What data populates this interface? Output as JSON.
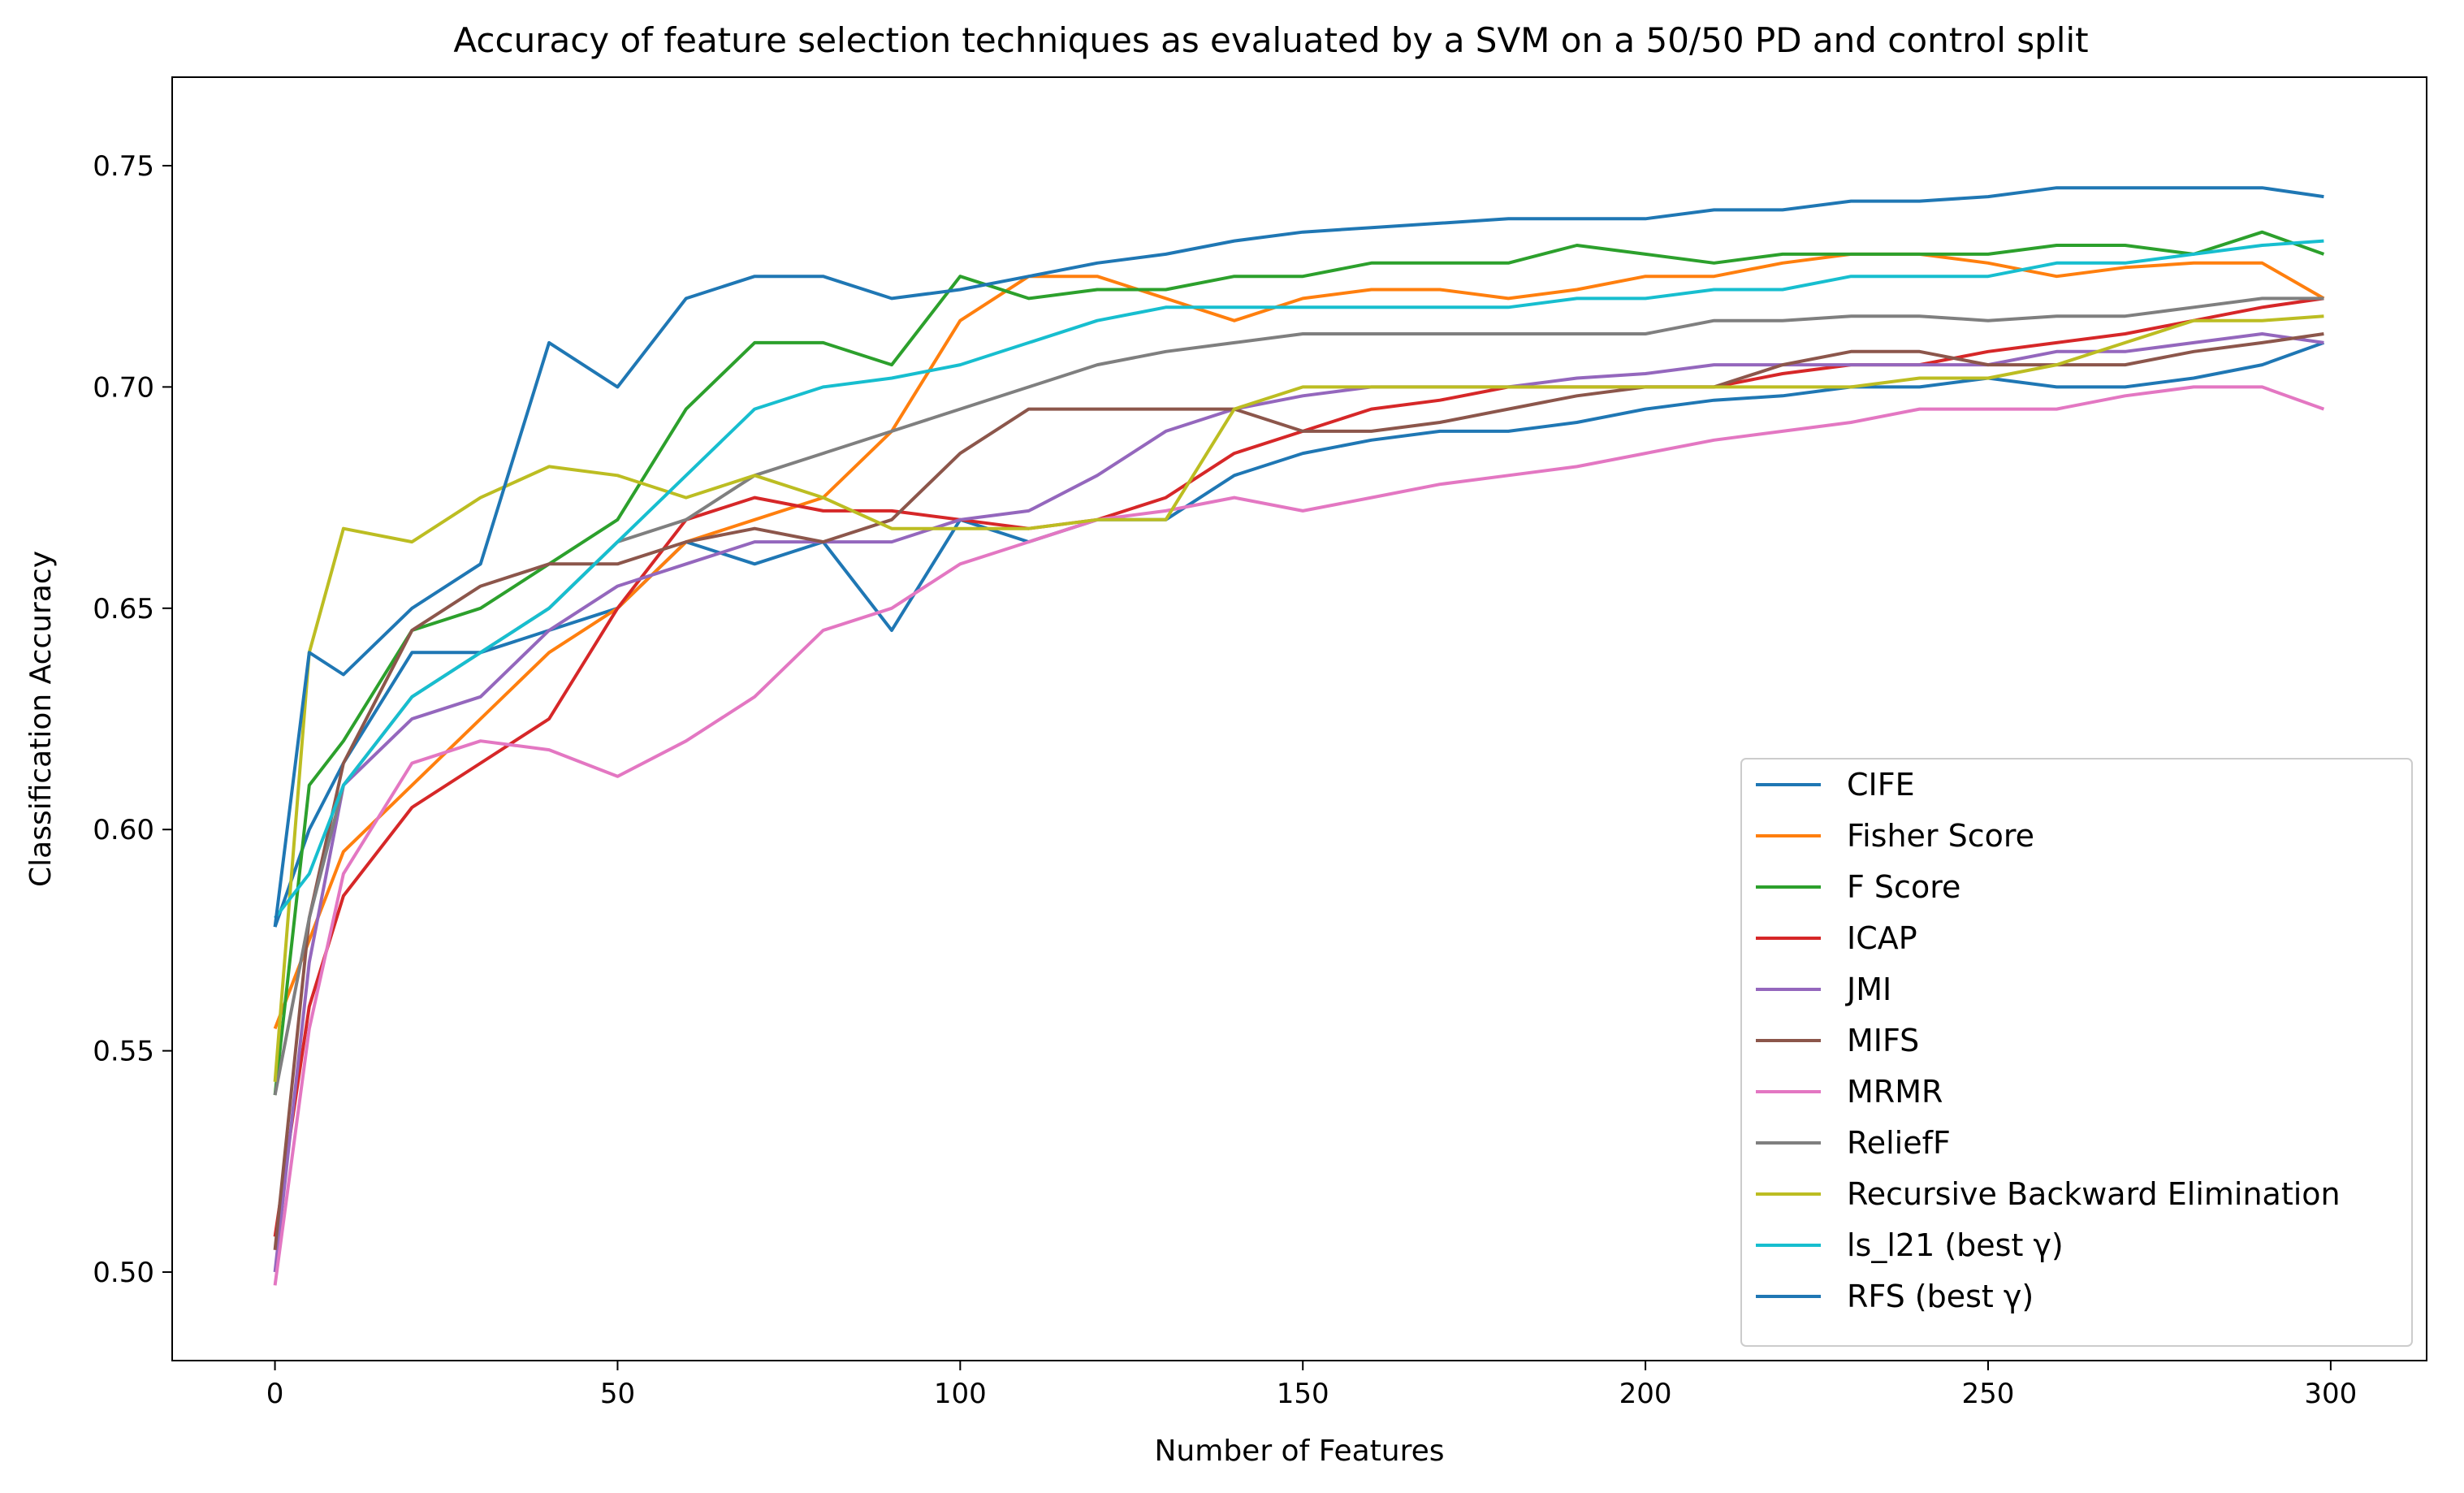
{
  "chart_data": {
    "type": "line",
    "title": "Accuracy of feature selection techniques as evaluated by a SVM on a 50/50 PD and control split",
    "xlabel": "Number of Features",
    "ylabel": "Classification Accuracy",
    "xlim": [
      -15,
      314
    ],
    "ylim": [
      0.48,
      0.77
    ],
    "xticks": [
      0,
      50,
      100,
      150,
      200,
      250,
      300
    ],
    "yticks": [
      0.5,
      0.55,
      0.6,
      0.65,
      0.7,
      0.75
    ],
    "xtick_labels": [
      "0",
      "50",
      "100",
      "150",
      "200",
      "250",
      "300"
    ],
    "ytick_labels": [
      "0.50",
      "0.55",
      "0.60",
      "0.65",
      "0.70",
      "0.75"
    ],
    "grid": false,
    "legend_position": "lower-right",
    "x": [
      0,
      5,
      10,
      20,
      30,
      40,
      50,
      60,
      70,
      80,
      90,
      100,
      110,
      120,
      130,
      140,
      150,
      160,
      170,
      180,
      190,
      200,
      210,
      220,
      230,
      240,
      250,
      260,
      270,
      280,
      290,
      299
    ],
    "series": [
      {
        "name": "CIFE",
        "color": "#1f77b4",
        "values": [
          0.578,
          0.6,
          0.615,
          0.64,
          0.64,
          0.645,
          0.65,
          0.665,
          0.66,
          0.665,
          0.645,
          0.67,
          0.665,
          0.67,
          0.67,
          0.68,
          0.685,
          0.688,
          0.69,
          0.69,
          0.692,
          0.695,
          0.697,
          0.698,
          0.7,
          0.7,
          0.702,
          0.7,
          0.7,
          0.702,
          0.705,
          0.71
        ]
      },
      {
        "name": "Fisher Score",
        "color": "#ff7f0e",
        "values": [
          0.555,
          0.575,
          0.595,
          0.61,
          0.625,
          0.64,
          0.65,
          0.665,
          0.67,
          0.675,
          0.69,
          0.715,
          0.725,
          0.725,
          0.72,
          0.715,
          0.72,
          0.722,
          0.722,
          0.72,
          0.722,
          0.725,
          0.725,
          0.728,
          0.73,
          0.73,
          0.728,
          0.725,
          0.727,
          0.728,
          0.728,
          0.72
        ]
      },
      {
        "name": "F Score",
        "color": "#2ca02c",
        "values": [
          0.54,
          0.61,
          0.62,
          0.645,
          0.65,
          0.66,
          0.67,
          0.695,
          0.71,
          0.71,
          0.705,
          0.725,
          0.72,
          0.722,
          0.722,
          0.725,
          0.725,
          0.728,
          0.728,
          0.728,
          0.732,
          0.73,
          0.728,
          0.73,
          0.73,
          0.73,
          0.73,
          0.732,
          0.732,
          0.73,
          0.735,
          0.73
        ]
      },
      {
        "name": "ICAP",
        "color": "#d62728",
        "values": [
          0.508,
          0.56,
          0.585,
          0.605,
          0.615,
          0.625,
          0.65,
          0.67,
          0.675,
          0.672,
          0.672,
          0.67,
          0.668,
          0.67,
          0.675,
          0.685,
          0.69,
          0.695,
          0.697,
          0.7,
          0.7,
          0.7,
          0.7,
          0.703,
          0.705,
          0.705,
          0.708,
          0.71,
          0.712,
          0.715,
          0.718,
          0.72
        ]
      },
      {
        "name": "JMI",
        "color": "#9467bd",
        "values": [
          0.5,
          0.57,
          0.61,
          0.625,
          0.63,
          0.645,
          0.655,
          0.66,
          0.665,
          0.665,
          0.665,
          0.67,
          0.672,
          0.68,
          0.69,
          0.695,
          0.698,
          0.7,
          0.7,
          0.7,
          0.702,
          0.703,
          0.705,
          0.705,
          0.705,
          0.705,
          0.705,
          0.708,
          0.708,
          0.71,
          0.712,
          0.71
        ]
      },
      {
        "name": "MIFS",
        "color": "#8c564b",
        "values": [
          0.505,
          0.58,
          0.615,
          0.645,
          0.655,
          0.66,
          0.66,
          0.665,
          0.668,
          0.665,
          0.67,
          0.685,
          0.695,
          0.695,
          0.695,
          0.695,
          0.69,
          0.69,
          0.692,
          0.695,
          0.698,
          0.7,
          0.7,
          0.705,
          0.708,
          0.708,
          0.705,
          0.705,
          0.705,
          0.708,
          0.71,
          0.712
        ]
      },
      {
        "name": "MRMR",
        "color": "#e377c2",
        "values": [
          0.497,
          0.555,
          0.59,
          0.615,
          0.62,
          0.618,
          0.612,
          0.62,
          0.63,
          0.645,
          0.65,
          0.66,
          0.665,
          0.67,
          0.672,
          0.675,
          0.672,
          0.675,
          0.678,
          0.68,
          0.682,
          0.685,
          0.688,
          0.69,
          0.692,
          0.695,
          0.695,
          0.695,
          0.698,
          0.7,
          0.7,
          0.695
        ]
      },
      {
        "name": "ReliefF",
        "color": "#7f7f7f",
        "values": [
          0.54,
          0.58,
          0.61,
          0.63,
          0.64,
          0.65,
          0.665,
          0.67,
          0.68,
          0.685,
          0.69,
          0.695,
          0.7,
          0.705,
          0.708,
          0.71,
          0.712,
          0.712,
          0.712,
          0.712,
          0.712,
          0.712,
          0.715,
          0.715,
          0.716,
          0.716,
          0.715,
          0.716,
          0.716,
          0.718,
          0.72,
          0.72
        ]
      },
      {
        "name": "Recursive Backward Elimination",
        "color": "#bcbd22",
        "values": [
          0.543,
          0.64,
          0.668,
          0.665,
          0.675,
          0.682,
          0.68,
          0.675,
          0.68,
          0.675,
          0.668,
          0.668,
          0.668,
          0.67,
          0.67,
          0.695,
          0.7,
          0.7,
          0.7,
          0.7,
          0.7,
          0.7,
          0.7,
          0.7,
          0.7,
          0.702,
          0.702,
          0.705,
          0.71,
          0.715,
          0.715,
          0.716
        ]
      },
      {
        "name": "ls_l21 (best γ)",
        "color": "#17becf",
        "values": [
          0.58,
          0.59,
          0.61,
          0.63,
          0.64,
          0.65,
          0.665,
          0.68,
          0.695,
          0.7,
          0.702,
          0.705,
          0.71,
          0.715,
          0.718,
          0.718,
          0.718,
          0.718,
          0.718,
          0.718,
          0.72,
          0.72,
          0.722,
          0.722,
          0.725,
          0.725,
          0.725,
          0.728,
          0.728,
          0.73,
          0.732,
          0.733
        ]
      },
      {
        "name": "RFS (best γ)",
        "color": "#1f77b4",
        "values": [
          0.578,
          0.64,
          0.635,
          0.65,
          0.66,
          0.71,
          0.7,
          0.72,
          0.725,
          0.725,
          0.72,
          0.722,
          0.725,
          0.728,
          0.73,
          0.733,
          0.735,
          0.736,
          0.737,
          0.738,
          0.738,
          0.738,
          0.74,
          0.74,
          0.742,
          0.742,
          0.743,
          0.745,
          0.745,
          0.745,
          0.745,
          0.743
        ]
      }
    ]
  }
}
